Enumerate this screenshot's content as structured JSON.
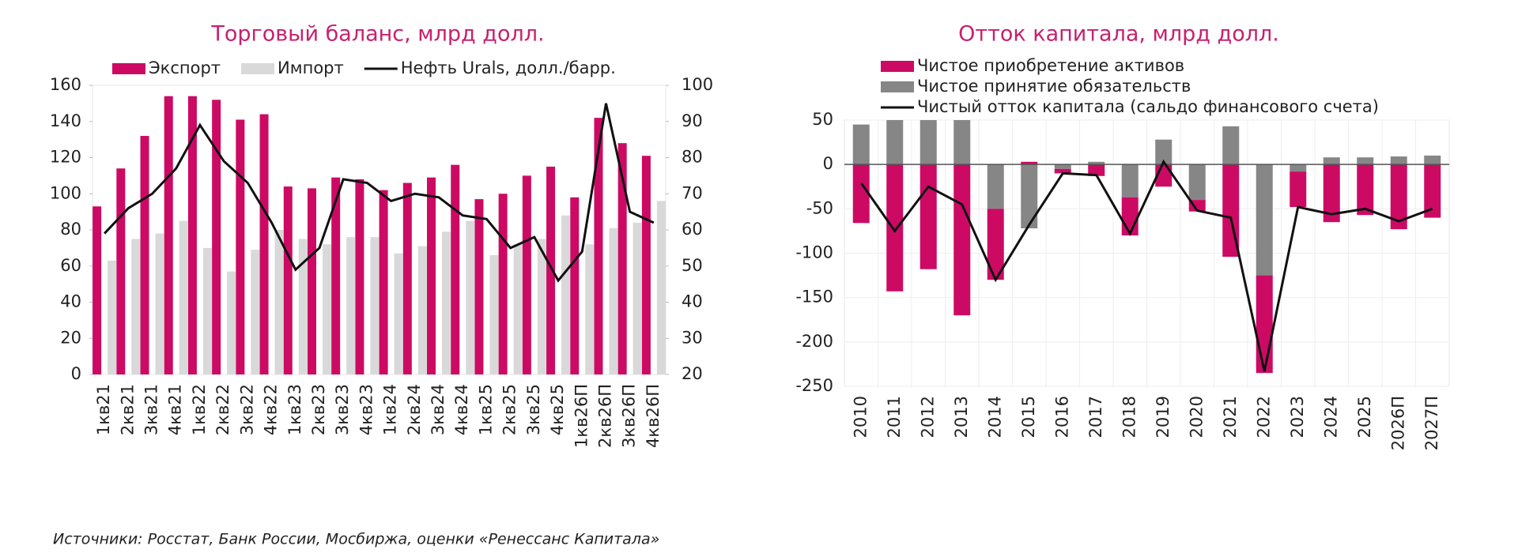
{
  "chart_data": [
    {
      "type": "bar",
      "title": "Торговый баланс, млрд долл.",
      "categories": [
        "1кв21",
        "2кв21",
        "3кв21",
        "4кв21",
        "1кв22",
        "2кв22",
        "3кв22",
        "4кв22",
        "1кв23",
        "2кв23",
        "3кв23",
        "4кв23",
        "1кв24",
        "2кв24",
        "3кв24",
        "4кв24",
        "1кв25",
        "2кв25",
        "3кв25",
        "4кв25",
        "1кв26П",
        "2кв26П",
        "3кв26П",
        "4кв26П"
      ],
      "series": [
        {
          "name": "Экспорт",
          "color": "#cc0a64",
          "values": [
            93,
            114,
            132,
            154,
            154,
            152,
            141,
            144,
            104,
            103,
            109,
            108,
            102,
            106,
            109,
            116,
            97,
            100,
            110,
            115,
            98,
            142,
            128,
            121
          ]
        },
        {
          "name": "Импорт",
          "color": "#d9d9d9",
          "values": [
            63,
            75,
            78,
            85,
            70,
            57,
            69,
            80,
            75,
            72,
            76,
            76,
            67,
            71,
            79,
            85,
            66,
            72,
            75,
            88,
            72,
            81,
            84,
            96
          ]
        },
        {
          "name": "Нефть Urals, долл./барр.",
          "color": "#111111",
          "type": "line",
          "axis": "y2",
          "values": [
            59,
            66,
            70,
            77,
            89,
            79,
            73,
            62,
            49,
            55,
            74,
            73,
            68,
            70,
            69,
            64,
            63,
            55,
            58,
            46,
            54,
            95,
            65,
            62
          ]
        }
      ],
      "ylim": [
        0,
        160
      ],
      "yticks": [
        0,
        20,
        40,
        60,
        80,
        100,
        120,
        140,
        160
      ],
      "y2lim": [
        20,
        100
      ],
      "y2ticks": [
        20,
        30,
        40,
        50,
        60,
        70,
        80,
        90,
        100
      ],
      "grid": false
    },
    {
      "type": "stacked_bar",
      "title": "Отток капитала, млрд долл.",
      "categories": [
        "2010",
        "2011",
        "2012",
        "2013",
        "2014",
        "2015",
        "2016",
        "2017",
        "2018",
        "2019",
        "2020",
        "2021",
        "2022",
        "2023",
        "2024",
        "2025",
        "2026П",
        "2027П"
      ],
      "series": [
        {
          "name": "Чистое приобретение активов",
          "color": "#cc0a64",
          "values": [
            -66,
            -143,
            -118,
            -170,
            -80,
            3,
            -5,
            -13,
            -43,
            -25,
            -13,
            -104,
            -110,
            -40,
            -65,
            -57,
            -73,
            -60
          ]
        },
        {
          "name": "Чистое принятие обязательств",
          "color": "#868686",
          "values": [
            45,
            50,
            50,
            50,
            -50,
            -72,
            -5,
            3,
            -37,
            28,
            -40,
            43,
            -125,
            -8,
            8,
            8,
            9,
            10
          ]
        },
        {
          "name": "Чистый отток капитала (сальдо финансового счета)",
          "color": "#111111",
          "type": "line",
          "values": [
            -21,
            -75,
            -25,
            -45,
            -130,
            -68,
            -10,
            -12,
            -78,
            3,
            -52,
            -60,
            -233,
            -48,
            -56,
            -50,
            -64,
            -50
          ]
        }
      ],
      "ylim": [
        -250,
        50
      ],
      "yticks": [
        -250,
        -200,
        -150,
        -100,
        -50,
        0,
        50
      ],
      "grid": true
    }
  ],
  "source": "Источники: Росстат, Банк России, Мосбиржа, оценки «Ренессанс Капитала»"
}
